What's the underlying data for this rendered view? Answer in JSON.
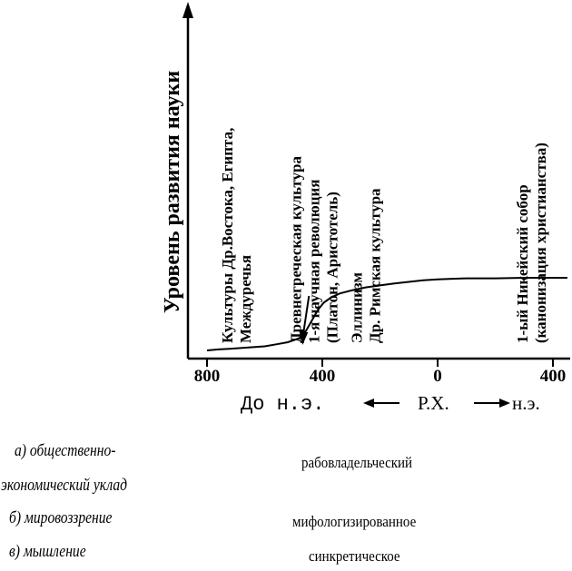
{
  "chart_data": {
    "type": "line",
    "ylabel": "Уровень развития науки",
    "x_ticks": [
      "800",
      "400",
      "0",
      "400"
    ],
    "x_tick_values": [
      -800,
      -400,
      0,
      400
    ],
    "xlim": [
      -800,
      450
    ],
    "ylim": [
      0,
      1
    ],
    "grid": false,
    "axis_caption": {
      "before": "До н.э.",
      "center": "Р.Х.",
      "after": "н.э."
    },
    "series": [
      {
        "x": [
          -800,
          -760,
          -700,
          -650,
          -600,
          -560,
          -520,
          -480,
          -455,
          -435,
          -415,
          -395,
          -370,
          -340,
          -300,
          -250,
          -200,
          -150,
          -100,
          -50,
          0,
          50,
          100,
          200,
          300,
          450
        ],
        "y": [
          0.0,
          0.01,
          0.02,
          0.03,
          0.04,
          0.06,
          0.08,
          0.12,
          0.2,
          0.3,
          0.4,
          0.47,
          0.52,
          0.56,
          0.59,
          0.62,
          0.64,
          0.66,
          0.675,
          0.69,
          0.7,
          0.705,
          0.71,
          0.71,
          0.715,
          0.715
        ]
      }
    ],
    "annotations": [
      {
        "x": -700,
        "lines": [
          "Культуры Др.Востока, Египта,",
          "Междуречья"
        ]
      },
      {
        "x": -430,
        "lines": [
          "Древнегреческая культура",
          "1-я научная революция",
          "(Платон, Аристотель)"
        ],
        "arrow_to_x": -440
      },
      {
        "x": -250,
        "lines": [
          "Эллинизм",
          "Др. Римская культура"
        ]
      },
      {
        "x": 325,
        "lines": [
          "1-ый Никейский собор",
          "(канонизация христианства)"
        ]
      }
    ]
  },
  "table": {
    "rows": [
      {
        "label": [
          "а) общественно-",
          "экономический  уклад"
        ],
        "value": "рабовладельческий"
      },
      {
        "label": [
          "б) мировоззрение"
        ],
        "value": "мифологизированное"
      },
      {
        "label": [
          "в) мышление"
        ],
        "value": "синкретическое"
      }
    ]
  }
}
